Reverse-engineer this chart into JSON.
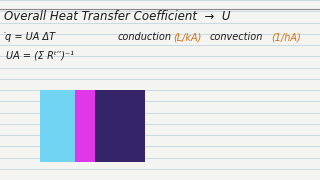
{
  "title": "Overall Heat Transfer Coefficient  →  U",
  "line1_left": "̇q = UA ΔT",
  "line1_mid": "conduction",
  "line1_mid2": "(L/kA)",
  "line1_right": "convection",
  "line1_right2": "(1/hA)",
  "line2": "UA = (Σ Rᵗ′′)⁻¹",
  "bg_color": "#f4f4f0",
  "line_color": "#b8cfe0",
  "text_color": "#1a1a1a",
  "orange_color": "#d4721a",
  "rect_colors": [
    "#70d4f2",
    "#e038e8",
    "#352568"
  ],
  "title_fontsize": 8.5,
  "body_fontsize": 7.0,
  "num_lines": 16
}
